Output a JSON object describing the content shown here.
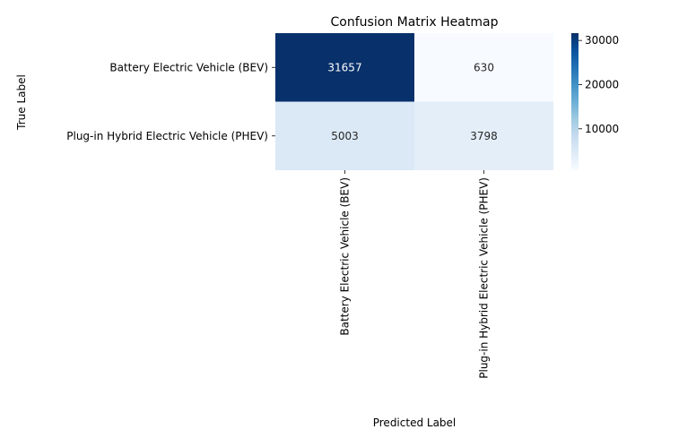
{
  "chart_data": {
    "type": "heatmap",
    "title": "Confusion Matrix Heatmap",
    "xlabel": "Predicted Label",
    "ylabel": "True Label",
    "x_categories": [
      "Battery Electric Vehicle (BEV)",
      "Plug-in Hybrid Electric Vehicle (PHEV)"
    ],
    "y_categories": [
      "Battery Electric Vehicle (BEV)",
      "Plug-in Hybrid Electric Vehicle (PHEV)"
    ],
    "values": [
      [
        31657,
        630
      ],
      [
        5003,
        3798
      ]
    ],
    "colormap": "Blues",
    "colorbar": {
      "min": 630,
      "max": 31657,
      "ticks": [
        10000,
        20000,
        30000
      ],
      "tick_labels": [
        "10000",
        "20000",
        "30000"
      ]
    },
    "grid": false
  }
}
